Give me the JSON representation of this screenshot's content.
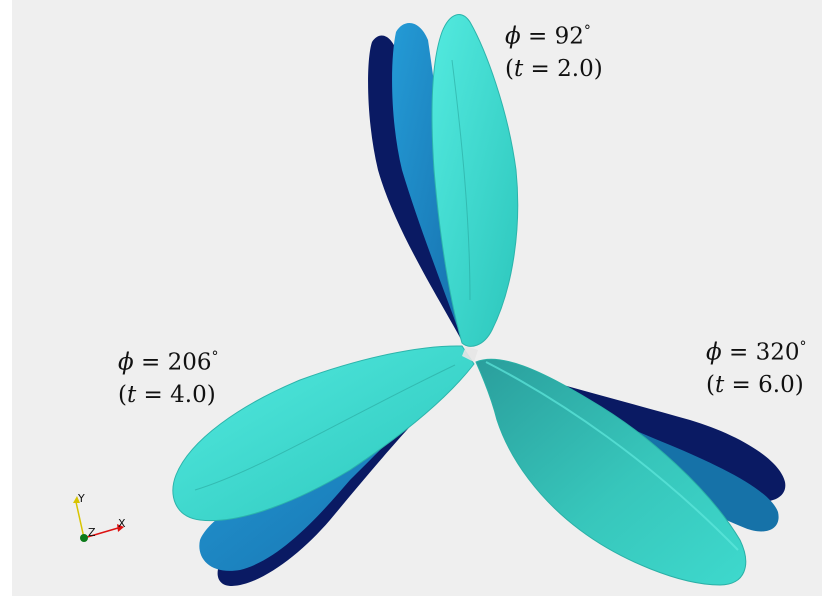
{
  "labels": {
    "wing_top": {
      "angle": "92",
      "time": "2.0"
    },
    "wing_left": {
      "angle": "206",
      "time": "4.0"
    },
    "wing_right": {
      "angle": "320",
      "time": "6.0"
    }
  },
  "symbols": {
    "phi": "ϕ",
    "t": "t",
    "equals": " = ",
    "degree": "°"
  },
  "axes": {
    "y": "Y",
    "z": "Z",
    "x": "X"
  },
  "colors": {
    "background": "#efefef",
    "wing_dark": "#0b1a63",
    "wing_mid": "#1c86c8",
    "wing_light": "#3fdccf"
  }
}
